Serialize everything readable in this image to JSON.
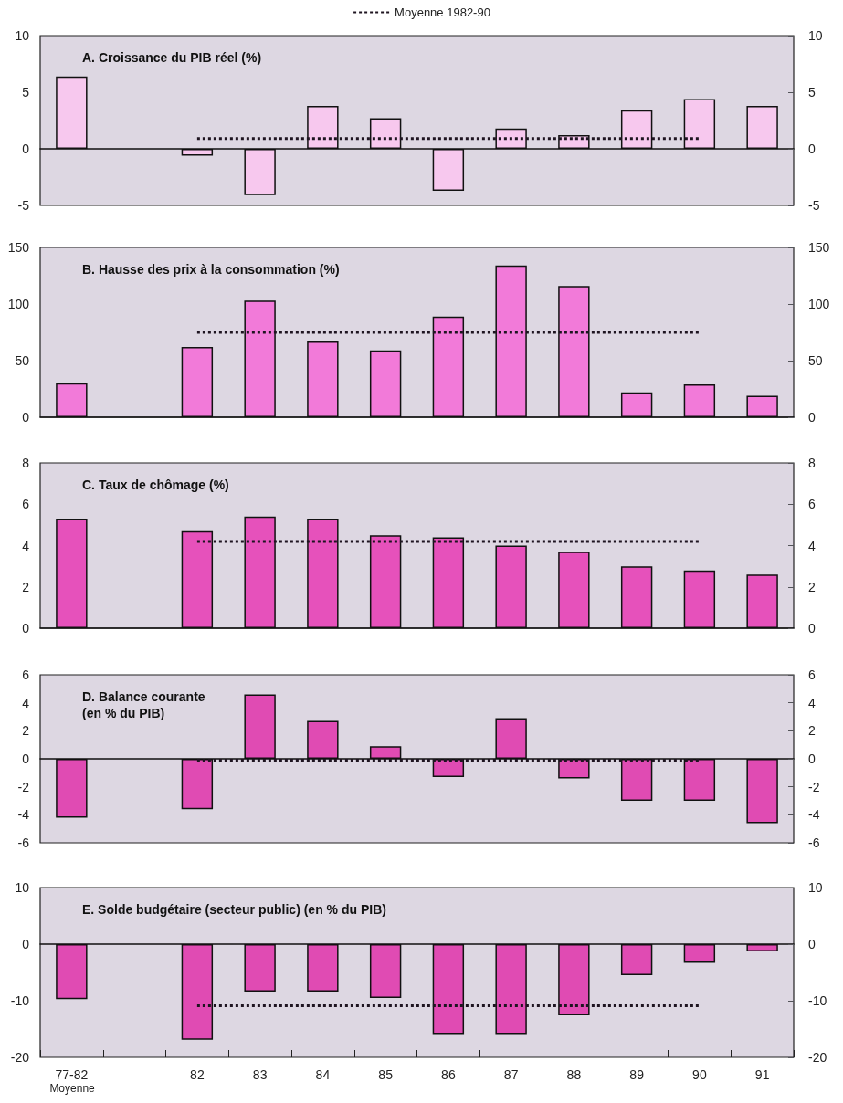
{
  "chart_data": [
    {
      "type": "bar",
      "title": "A. Croissance du PIB réel (%)",
      "categories": [
        null,
        null,
        null,
        null,
        null,
        null,
        null,
        null,
        null,
        null,
        null,
        null
      ],
      "series": [
        {
          "color": "#f7c8ee",
          "values": [
            6.4,
            null,
            -0.6,
            -4.1,
            3.8,
            2.7,
            -3.7,
            1.8,
            1.2,
            3.4,
            4.4,
            3.8
          ]
        },
        {
          "type": "line",
          "name": "Moyenne 1982-90",
          "color": "#1e1420",
          "values": [
            null,
            null,
            0.9,
            0.9,
            0.9,
            0.9,
            0.9,
            0.9,
            0.9,
            0.9,
            0.9,
            null
          ]
        }
      ],
      "ylim": [
        -5,
        10
      ],
      "yticks": [
        -5,
        0,
        5,
        10
      ],
      "y2lim": [
        -5,
        10
      ],
      "y2ticks": [
        -5,
        0,
        5,
        10
      ],
      "tick_labels": "y",
      "legend": "top",
      "marker": "none",
      "line_style": "dotted"
    },
    {
      "type": "bar",
      "title": "B. Hausse des prix à la consommation (%)",
      "categories": [
        null,
        null,
        null,
        null,
        null,
        null,
        null,
        null,
        null,
        null,
        null,
        null
      ],
      "series": [
        {
          "color": "#f27ad9",
          "values": [
            30,
            null,
            62,
            103,
            67,
            59,
            89,
            134,
            116,
            22,
            29,
            19
          ]
        },
        {
          "type": "line",
          "color": "#1e1420",
          "values": [
            null,
            null,
            75,
            75,
            75,
            75,
            75,
            75,
            75,
            75,
            75,
            null
          ]
        }
      ],
      "ylim": [
        0,
        150
      ],
      "yticks": [
        0,
        50,
        100,
        150
      ],
      "y2lim": [
        0,
        150
      ],
      "y2ticks": [
        0,
        50,
        100,
        150
      ],
      "tick_labels": "y",
      "marker": "none",
      "line_style": "dotted"
    },
    {
      "type": "bar",
      "title": "C. Taux de chômage (%)",
      "categories": [
        null,
        null,
        null,
        null,
        null,
        null,
        null,
        null,
        null,
        null,
        null,
        null
      ],
      "series": [
        {
          "color": "#e651bb",
          "values": [
            5.3,
            null,
            4.7,
            5.4,
            5.3,
            4.5,
            4.4,
            4.0,
            3.7,
            3.0,
            2.8,
            2.6
          ]
        },
        {
          "type": "line",
          "color": "#1e1420",
          "values": [
            null,
            null,
            4.2,
            4.2,
            4.2,
            4.2,
            4.2,
            4.2,
            4.2,
            4.2,
            4.2,
            null
          ]
        }
      ],
      "ylim": [
        0,
        8
      ],
      "yticks": [
        0,
        2,
        4,
        6,
        8
      ],
      "y2lim": [
        0,
        8
      ],
      "y2ticks": [
        0,
        2,
        4,
        6,
        8
      ],
      "tick_labels": "y",
      "marker": "none",
      "line_style": "dotted"
    },
    {
      "type": "bar",
      "title": "D. Balance courante\n(en % du PIB)",
      "categories": [
        null,
        null,
        null,
        null,
        null,
        null,
        null,
        null,
        null,
        null,
        null,
        null
      ],
      "series": [
        {
          "color": "#e04bb3",
          "values": [
            -4.2,
            null,
            -3.6,
            4.6,
            2.7,
            0.9,
            -1.3,
            2.9,
            -1.4,
            -3.0,
            -3.0,
            -4.6
          ]
        },
        {
          "type": "line",
          "color": "#1e1420",
          "values": [
            null,
            null,
            -0.1,
            -0.1,
            -0.1,
            -0.1,
            -0.1,
            -0.1,
            -0.1,
            -0.1,
            -0.1,
            null
          ]
        }
      ],
      "ylim": [
        -6,
        6
      ],
      "yticks": [
        -6,
        -4,
        -2,
        0,
        2,
        4,
        6
      ],
      "y2lim": [
        -6,
        6
      ],
      "y2ticks": [
        -6,
        -4,
        -2,
        0,
        2,
        4,
        6
      ],
      "tick_labels": "y",
      "marker": "none",
      "line_style": "dotted"
    },
    {
      "type": "bar",
      "title": "E. Solde budgétaire (secteur public) (en % du PIB)",
      "categories": [
        "77-82",
        null,
        "82",
        "83",
        "84",
        "85",
        "86",
        "87",
        "88",
        "89",
        "90",
        "91"
      ],
      "series": [
        {
          "color": "#e04bb3",
          "values": [
            -9.7,
            null,
            -16.9,
            -8.4,
            -8.4,
            -9.5,
            -15.9,
            -15.9,
            -12.6,
            -5.5,
            -3.3,
            -1.3
          ]
        },
        {
          "type": "line",
          "color": "#1e1420",
          "values": [
            null,
            null,
            -10.9,
            -10.9,
            -10.9,
            -10.9,
            -10.9,
            -10.9,
            -10.9,
            -10.9,
            -10.9,
            null
          ]
        }
      ],
      "ylim": [
        -20,
        10
      ],
      "yticks": [
        -20,
        -10,
        0,
        10
      ],
      "y2lim": [
        -20,
        10
      ],
      "y2ticks": [
        -20,
        -10,
        0,
        10
      ],
      "marker": "none",
      "line_style": "dotted",
      "annotations": [
        "Moyenne"
      ]
    }
  ]
}
